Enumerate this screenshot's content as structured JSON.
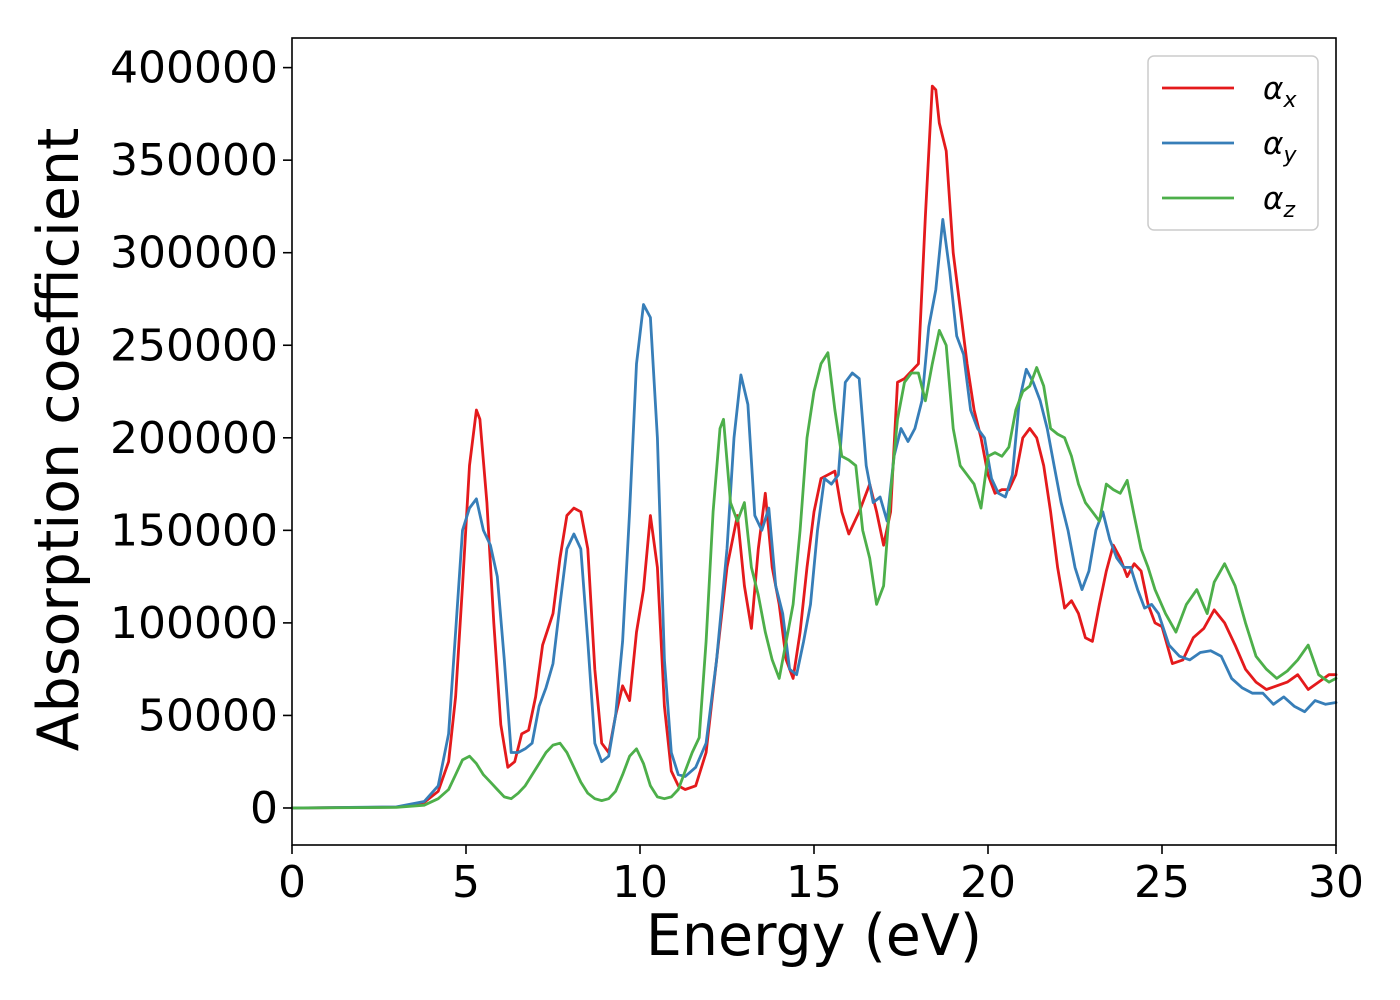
{
  "chart_data": {
    "type": "line",
    "xlabel": "Energy (eV)",
    "ylabel": "Absorption coefficient",
    "xlim": [
      0,
      30
    ],
    "ylim": [
      -20000,
      416000
    ],
    "xticks": [
      0,
      5,
      10,
      15,
      20,
      25,
      30
    ],
    "xtick_labels": [
      "0",
      "5",
      "10",
      "15",
      "20",
      "25",
      "30"
    ],
    "yticks": [
      0,
      50000,
      100000,
      150000,
      200000,
      250000,
      300000,
      350000,
      400000
    ],
    "ytick_labels": [
      "0",
      "50000",
      "100000",
      "150000",
      "200000",
      "250000",
      "300000",
      "350000",
      "400000"
    ],
    "grid": false,
    "legend": {
      "position": "top-right"
    },
    "series": [
      {
        "name": "α_x",
        "label_main": "α",
        "label_sub": "x",
        "color": "#e41a1c",
        "x": [
          0,
          3,
          3.8,
          4.2,
          4.5,
          4.7,
          4.9,
          5.1,
          5.3,
          5.4,
          5.6,
          5.8,
          6.0,
          6.2,
          6.4,
          6.6,
          6.8,
          7.0,
          7.2,
          7.5,
          7.7,
          7.9,
          8.1,
          8.3,
          8.5,
          8.7,
          8.9,
          9.1,
          9.3,
          9.5,
          9.7,
          9.9,
          10.1,
          10.3,
          10.5,
          10.7,
          10.9,
          11.1,
          11.3,
          11.6,
          11.9,
          12.2,
          12.5,
          12.8,
          13.0,
          13.2,
          13.4,
          13.6,
          13.8,
          14.0,
          14.2,
          14.4,
          14.6,
          14.8,
          15.0,
          15.2,
          15.4,
          15.6,
          15.8,
          16.0,
          16.3,
          16.6,
          16.8,
          17.0,
          17.2,
          17.4,
          17.6,
          17.8,
          18.0,
          18.2,
          18.4,
          18.5,
          18.6,
          18.8,
          19.0,
          19.2,
          19.4,
          19.6,
          19.8,
          20.0,
          20.2,
          20.4,
          20.6,
          20.8,
          21.0,
          21.2,
          21.4,
          21.6,
          21.8,
          22.0,
          22.2,
          22.4,
          22.6,
          22.8,
          23.0,
          23.2,
          23.4,
          23.6,
          23.8,
          24.0,
          24.2,
          24.4,
          24.6,
          24.8,
          25.0,
          25.3,
          25.6,
          25.9,
          26.2,
          26.5,
          26.8,
          27.1,
          27.4,
          27.7,
          28.0,
          28.3,
          28.6,
          28.9,
          29.2,
          29.5,
          29.8,
          30.0
        ],
        "y": [
          0,
          500,
          3000,
          9000,
          25000,
          60000,
          120000,
          185000,
          215000,
          210000,
          165000,
          100000,
          45000,
          22000,
          25000,
          40000,
          42000,
          60000,
          88000,
          105000,
          135000,
          158000,
          162000,
          160000,
          140000,
          75000,
          35000,
          30000,
          50000,
          66000,
          58000,
          95000,
          118000,
          158000,
          130000,
          55000,
          20000,
          12000,
          10000,
          12000,
          30000,
          80000,
          130000,
          158000,
          120000,
          97000,
          140000,
          170000,
          130000,
          110000,
          80000,
          70000,
          95000,
          130000,
          160000,
          178000,
          180000,
          182000,
          160000,
          148000,
          160000,
          175000,
          160000,
          142000,
          160000,
          230000,
          232000,
          236000,
          240000,
          320000,
          390000,
          388000,
          370000,
          355000,
          300000,
          270000,
          240000,
          215000,
          200000,
          180000,
          170000,
          172000,
          172000,
          180000,
          200000,
          205000,
          200000,
          185000,
          160000,
          130000,
          108000,
          112000,
          105000,
          92000,
          90000,
          110000,
          128000,
          142000,
          135000,
          125000,
          132000,
          128000,
          110000,
          100000,
          98000,
          78000,
          80000,
          92000,
          97000,
          107000,
          100000,
          88000,
          75000,
          68000,
          64000,
          66000,
          68000,
          72000,
          64000,
          68000,
          72000,
          72000
        ]
      },
      {
        "name": "α_y",
        "label_main": "α",
        "label_sub": "y",
        "color": "#377eb8",
        "x": [
          0,
          3,
          3.8,
          4.2,
          4.5,
          4.7,
          4.9,
          5.1,
          5.3,
          5.5,
          5.7,
          5.9,
          6.1,
          6.3,
          6.5,
          6.7,
          6.9,
          7.1,
          7.3,
          7.5,
          7.7,
          7.9,
          8.1,
          8.3,
          8.5,
          8.7,
          8.9,
          9.1,
          9.3,
          9.5,
          9.7,
          9.9,
          10.1,
          10.3,
          10.5,
          10.7,
          10.9,
          11.1,
          11.3,
          11.6,
          11.9,
          12.2,
          12.5,
          12.7,
          12.9,
          13.1,
          13.3,
          13.5,
          13.7,
          13.9,
          14.1,
          14.3,
          14.5,
          14.7,
          14.9,
          15.1,
          15.3,
          15.5,
          15.7,
          15.9,
          16.1,
          16.3,
          16.5,
          16.7,
          16.9,
          17.1,
          17.3,
          17.5,
          17.7,
          17.9,
          18.1,
          18.3,
          18.5,
          18.7,
          18.9,
          19.1,
          19.3,
          19.5,
          19.7,
          19.9,
          20.1,
          20.3,
          20.5,
          20.7,
          20.9,
          21.1,
          21.3,
          21.5,
          21.7,
          21.9,
          22.1,
          22.3,
          22.5,
          22.7,
          22.9,
          23.1,
          23.3,
          23.5,
          23.7,
          23.9,
          24.1,
          24.3,
          24.5,
          24.7,
          24.9,
          25.2,
          25.5,
          25.8,
          26.1,
          26.4,
          26.7,
          27.0,
          27.3,
          27.6,
          27.9,
          28.2,
          28.5,
          28.8,
          29.1,
          29.4,
          29.7,
          30.0
        ],
        "y": [
          0,
          600,
          3500,
          12000,
          40000,
          95000,
          150000,
          162000,
          167000,
          150000,
          142000,
          125000,
          80000,
          30000,
          30000,
          32000,
          35000,
          55000,
          65000,
          78000,
          110000,
          140000,
          148000,
          140000,
          90000,
          35000,
          25000,
          28000,
          50000,
          90000,
          160000,
          240000,
          272000,
          265000,
          200000,
          80000,
          30000,
          18000,
          17000,
          22000,
          35000,
          80000,
          140000,
          200000,
          234000,
          218000,
          158000,
          150000,
          162000,
          120000,
          105000,
          75000,
          72000,
          90000,
          110000,
          150000,
          178000,
          175000,
          180000,
          230000,
          235000,
          232000,
          185000,
          165000,
          168000,
          155000,
          190000,
          205000,
          198000,
          205000,
          220000,
          260000,
          280000,
          318000,
          290000,
          255000,
          245000,
          215000,
          205000,
          200000,
          178000,
          170000,
          168000,
          180000,
          220000,
          237000,
          230000,
          220000,
          205000,
          185000,
          165000,
          150000,
          130000,
          118000,
          128000,
          150000,
          160000,
          145000,
          135000,
          130000,
          130000,
          118000,
          108000,
          110000,
          105000,
          88000,
          82000,
          80000,
          84000,
          85000,
          82000,
          70000,
          65000,
          62000,
          62000,
          56000,
          60000,
          55000,
          52000,
          58000,
          56000,
          57000
        ]
      },
      {
        "name": "α_z",
        "label_main": "α",
        "label_sub": "z",
        "color": "#4daf4a",
        "x": [
          0,
          3,
          3.8,
          4.2,
          4.5,
          4.7,
          4.9,
          5.1,
          5.3,
          5.5,
          5.7,
          5.9,
          6.1,
          6.3,
          6.5,
          6.7,
          6.9,
          7.1,
          7.3,
          7.5,
          7.7,
          7.9,
          8.1,
          8.3,
          8.5,
          8.7,
          8.9,
          9.1,
          9.3,
          9.5,
          9.7,
          9.9,
          10.1,
          10.3,
          10.5,
          10.7,
          10.9,
          11.1,
          11.3,
          11.5,
          11.7,
          11.9,
          12.1,
          12.3,
          12.4,
          12.6,
          12.8,
          13.0,
          13.2,
          13.4,
          13.6,
          13.8,
          14.0,
          14.2,
          14.4,
          14.6,
          14.8,
          15.0,
          15.2,
          15.4,
          15.6,
          15.8,
          16.0,
          16.2,
          16.4,
          16.6,
          16.8,
          17.0,
          17.2,
          17.4,
          17.6,
          17.8,
          18.0,
          18.2,
          18.4,
          18.6,
          18.8,
          19.0,
          19.2,
          19.4,
          19.6,
          19.8,
          20.0,
          20.2,
          20.4,
          20.6,
          20.8,
          21.0,
          21.2,
          21.4,
          21.6,
          21.8,
          22.0,
          22.2,
          22.4,
          22.6,
          22.8,
          23.0,
          23.2,
          23.4,
          23.6,
          23.8,
          24.0,
          24.2,
          24.4,
          24.6,
          24.8,
          25.1,
          25.4,
          25.7,
          26.0,
          26.3,
          26.5,
          26.8,
          27.1,
          27.4,
          27.7,
          28.0,
          28.3,
          28.6,
          28.9,
          29.2,
          29.5,
          29.8,
          30.0
        ],
        "y": [
          0,
          300,
          1500,
          5000,
          10000,
          18000,
          26000,
          28000,
          24000,
          18000,
          14000,
          10000,
          6000,
          5000,
          8000,
          12000,
          18000,
          24000,
          30000,
          34000,
          35000,
          30000,
          22000,
          14000,
          8000,
          5000,
          4000,
          5000,
          9000,
          18000,
          28000,
          32000,
          24000,
          12000,
          6000,
          5000,
          6000,
          10000,
          20000,
          30000,
          38000,
          90000,
          160000,
          205000,
          210000,
          165000,
          155000,
          165000,
          130000,
          115000,
          95000,
          80000,
          70000,
          90000,
          110000,
          150000,
          200000,
          225000,
          240000,
          246000,
          215000,
          190000,
          188000,
          185000,
          150000,
          135000,
          110000,
          120000,
          170000,
          210000,
          230000,
          235000,
          235000,
          220000,
          240000,
          258000,
          250000,
          205000,
          185000,
          180000,
          175000,
          162000,
          190000,
          192000,
          190000,
          195000,
          215000,
          225000,
          228000,
          238000,
          228000,
          205000,
          202000,
          200000,
          190000,
          175000,
          165000,
          160000,
          155000,
          175000,
          172000,
          170000,
          177000,
          158000,
          140000,
          130000,
          118000,
          105000,
          95000,
          110000,
          118000,
          105000,
          122000,
          132000,
          120000,
          100000,
          82000,
          75000,
          70000,
          74000,
          80000,
          88000,
          72000,
          68000,
          70000
        ]
      }
    ]
  }
}
